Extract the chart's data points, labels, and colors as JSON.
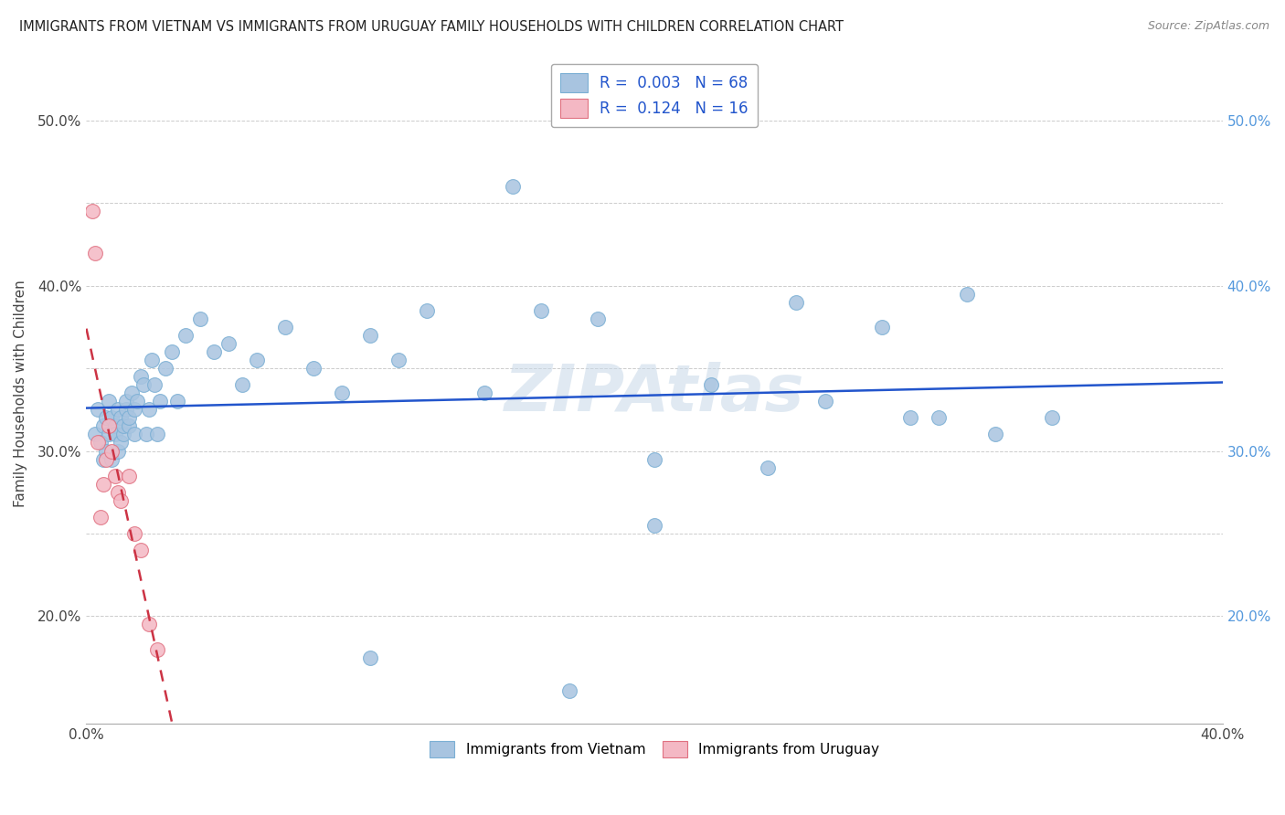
{
  "title": "IMMIGRANTS FROM VIETNAM VS IMMIGRANTS FROM URUGUAY FAMILY HOUSEHOLDS WITH CHILDREN CORRELATION CHART",
  "source": "Source: ZipAtlas.com",
  "ylabel": "Family Households with Children",
  "xlim": [
    0.0,
    0.4
  ],
  "ylim": [
    0.135,
    0.535
  ],
  "vietnam_color": "#a8c4e0",
  "vietnam_edge": "#7bafd4",
  "uruguay_color": "#f4b8c4",
  "uruguay_edge": "#e07080",
  "trendline_vietnam_color": "#2255cc",
  "trendline_uruguay_color": "#cc3344",
  "background_color": "#ffffff",
  "grid_color": "#cccccc",
  "watermark": "ZIPAtlas",
  "legend_r_n_color": "#2255cc",
  "vietnam_x": [
    0.003,
    0.004,
    0.005,
    0.006,
    0.006,
    0.007,
    0.007,
    0.008,
    0.008,
    0.009,
    0.009,
    0.01,
    0.01,
    0.011,
    0.011,
    0.012,
    0.012,
    0.013,
    0.013,
    0.014,
    0.014,
    0.015,
    0.015,
    0.016,
    0.017,
    0.017,
    0.018,
    0.019,
    0.02,
    0.021,
    0.022,
    0.023,
    0.024,
    0.025,
    0.026,
    0.028,
    0.03,
    0.032,
    0.035,
    0.04,
    0.045,
    0.05,
    0.055,
    0.06,
    0.07,
    0.08,
    0.09,
    0.1,
    0.11,
    0.12,
    0.14,
    0.16,
    0.18,
    0.2,
    0.22,
    0.25,
    0.28,
    0.3,
    0.32,
    0.34,
    0.1,
    0.15,
    0.2,
    0.17,
    0.24,
    0.26,
    0.29,
    0.31
  ],
  "vietnam_y": [
    0.31,
    0.325,
    0.305,
    0.295,
    0.315,
    0.3,
    0.32,
    0.31,
    0.33,
    0.295,
    0.32,
    0.315,
    0.31,
    0.3,
    0.325,
    0.305,
    0.32,
    0.31,
    0.315,
    0.325,
    0.33,
    0.315,
    0.32,
    0.335,
    0.31,
    0.325,
    0.33,
    0.345,
    0.34,
    0.31,
    0.325,
    0.355,
    0.34,
    0.31,
    0.33,
    0.35,
    0.36,
    0.33,
    0.37,
    0.38,
    0.36,
    0.365,
    0.34,
    0.355,
    0.375,
    0.35,
    0.335,
    0.37,
    0.355,
    0.385,
    0.335,
    0.385,
    0.38,
    0.295,
    0.34,
    0.39,
    0.375,
    0.32,
    0.31,
    0.32,
    0.175,
    0.46,
    0.255,
    0.155,
    0.29,
    0.33,
    0.32,
    0.395
  ],
  "uruguay_x": [
    0.002,
    0.003,
    0.004,
    0.005,
    0.006,
    0.007,
    0.008,
    0.009,
    0.01,
    0.011,
    0.012,
    0.015,
    0.017,
    0.019,
    0.022,
    0.025
  ],
  "uruguay_y": [
    0.445,
    0.42,
    0.305,
    0.26,
    0.28,
    0.295,
    0.315,
    0.3,
    0.285,
    0.275,
    0.27,
    0.285,
    0.25,
    0.24,
    0.195,
    0.18
  ]
}
